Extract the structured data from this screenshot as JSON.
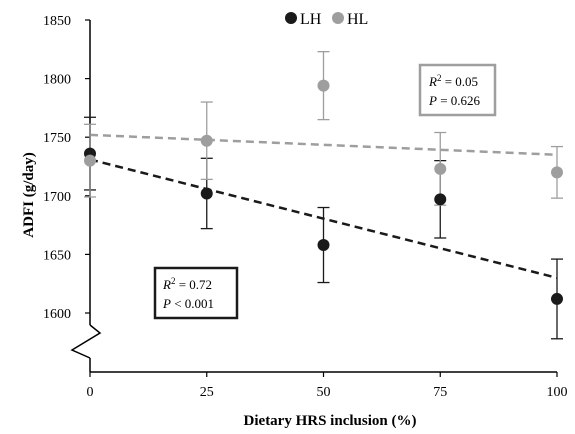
{
  "chart_data": {
    "type": "scatter",
    "xlabel": "Dietary HRS inclusion (%)",
    "ylabel": "ADFI (g/day)",
    "xlim": [
      0,
      100
    ],
    "ylim": [
      1550,
      1850
    ],
    "x_ticks": [
      "0",
      "25",
      "50",
      "75",
      "100"
    ],
    "y_ticks": [
      "1600",
      "1650",
      "1700",
      "1750",
      "1800",
      "1850"
    ],
    "axis_break": true,
    "grid": false,
    "legend_position": "top-center",
    "x": [
      0,
      25,
      50,
      75,
      100
    ],
    "series": [
      {
        "name": "LH",
        "color": "#1a1a1a",
        "values": [
          1736,
          1702,
          1658,
          1697,
          1612
        ],
        "error": [
          31,
          30,
          32,
          33,
          34
        ],
        "trendline": {
          "start": [
            0,
            1731
          ],
          "end": [
            100,
            1630
          ],
          "style": "dashed"
        },
        "annotation": {
          "r2": "0.72",
          "p": "0.001",
          "p_operator": "<"
        }
      },
      {
        "name": "HL",
        "color": "#9e9e9e",
        "values": [
          1730,
          1747,
          1794,
          1723,
          1720
        ],
        "error": [
          31,
          33,
          29,
          31,
          22
        ],
        "trendline": {
          "start": [
            0,
            1752
          ],
          "end": [
            100,
            1735
          ],
          "style": "dashed"
        },
        "annotation": {
          "r2": "0.05",
          "p": "0.626",
          "p_operator": "="
        }
      }
    ]
  }
}
